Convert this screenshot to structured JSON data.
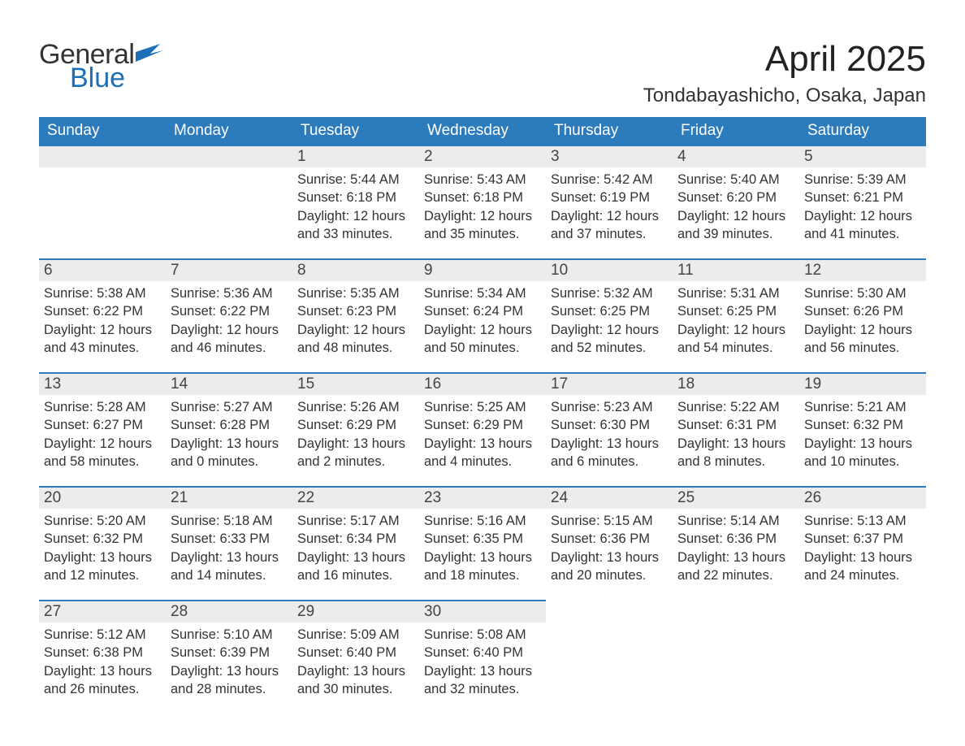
{
  "logo": {
    "text_general": "General",
    "text_blue": "Blue",
    "flag_color": "#1d6fb8"
  },
  "title": "April 2025",
  "location": "Tondabayashicho, Osaka, Japan",
  "colors": {
    "header_bg": "#2b7bbd",
    "header_text": "#ffffff",
    "daynum_bg": "#ececec",
    "daynum_border": "#2b7bbd",
    "body_text": "#333333",
    "logo_blue": "#1d6fb8"
  },
  "weekdays": [
    "Sunday",
    "Monday",
    "Tuesday",
    "Wednesday",
    "Thursday",
    "Friday",
    "Saturday"
  ],
  "weeks": [
    [
      null,
      null,
      {
        "day": "1",
        "sunrise": "Sunrise: 5:44 AM",
        "sunset": "Sunset: 6:18 PM",
        "daylight": "Daylight: 12 hours and 33 minutes."
      },
      {
        "day": "2",
        "sunrise": "Sunrise: 5:43 AM",
        "sunset": "Sunset: 6:18 PM",
        "daylight": "Daylight: 12 hours and 35 minutes."
      },
      {
        "day": "3",
        "sunrise": "Sunrise: 5:42 AM",
        "sunset": "Sunset: 6:19 PM",
        "daylight": "Daylight: 12 hours and 37 minutes."
      },
      {
        "day": "4",
        "sunrise": "Sunrise: 5:40 AM",
        "sunset": "Sunset: 6:20 PM",
        "daylight": "Daylight: 12 hours and 39 minutes."
      },
      {
        "day": "5",
        "sunrise": "Sunrise: 5:39 AM",
        "sunset": "Sunset: 6:21 PM",
        "daylight": "Daylight: 12 hours and 41 minutes."
      }
    ],
    [
      {
        "day": "6",
        "sunrise": "Sunrise: 5:38 AM",
        "sunset": "Sunset: 6:22 PM",
        "daylight": "Daylight: 12 hours and 43 minutes."
      },
      {
        "day": "7",
        "sunrise": "Sunrise: 5:36 AM",
        "sunset": "Sunset: 6:22 PM",
        "daylight": "Daylight: 12 hours and 46 minutes."
      },
      {
        "day": "8",
        "sunrise": "Sunrise: 5:35 AM",
        "sunset": "Sunset: 6:23 PM",
        "daylight": "Daylight: 12 hours and 48 minutes."
      },
      {
        "day": "9",
        "sunrise": "Sunrise: 5:34 AM",
        "sunset": "Sunset: 6:24 PM",
        "daylight": "Daylight: 12 hours and 50 minutes."
      },
      {
        "day": "10",
        "sunrise": "Sunrise: 5:32 AM",
        "sunset": "Sunset: 6:25 PM",
        "daylight": "Daylight: 12 hours and 52 minutes."
      },
      {
        "day": "11",
        "sunrise": "Sunrise: 5:31 AM",
        "sunset": "Sunset: 6:25 PM",
        "daylight": "Daylight: 12 hours and 54 minutes."
      },
      {
        "day": "12",
        "sunrise": "Sunrise: 5:30 AM",
        "sunset": "Sunset: 6:26 PM",
        "daylight": "Daylight: 12 hours and 56 minutes."
      }
    ],
    [
      {
        "day": "13",
        "sunrise": "Sunrise: 5:28 AM",
        "sunset": "Sunset: 6:27 PM",
        "daylight": "Daylight: 12 hours and 58 minutes."
      },
      {
        "day": "14",
        "sunrise": "Sunrise: 5:27 AM",
        "sunset": "Sunset: 6:28 PM",
        "daylight": "Daylight: 13 hours and 0 minutes."
      },
      {
        "day": "15",
        "sunrise": "Sunrise: 5:26 AM",
        "sunset": "Sunset: 6:29 PM",
        "daylight": "Daylight: 13 hours and 2 minutes."
      },
      {
        "day": "16",
        "sunrise": "Sunrise: 5:25 AM",
        "sunset": "Sunset: 6:29 PM",
        "daylight": "Daylight: 13 hours and 4 minutes."
      },
      {
        "day": "17",
        "sunrise": "Sunrise: 5:23 AM",
        "sunset": "Sunset: 6:30 PM",
        "daylight": "Daylight: 13 hours and 6 minutes."
      },
      {
        "day": "18",
        "sunrise": "Sunrise: 5:22 AM",
        "sunset": "Sunset: 6:31 PM",
        "daylight": "Daylight: 13 hours and 8 minutes."
      },
      {
        "day": "19",
        "sunrise": "Sunrise: 5:21 AM",
        "sunset": "Sunset: 6:32 PM",
        "daylight": "Daylight: 13 hours and 10 minutes."
      }
    ],
    [
      {
        "day": "20",
        "sunrise": "Sunrise: 5:20 AM",
        "sunset": "Sunset: 6:32 PM",
        "daylight": "Daylight: 13 hours and 12 minutes."
      },
      {
        "day": "21",
        "sunrise": "Sunrise: 5:18 AM",
        "sunset": "Sunset: 6:33 PM",
        "daylight": "Daylight: 13 hours and 14 minutes."
      },
      {
        "day": "22",
        "sunrise": "Sunrise: 5:17 AM",
        "sunset": "Sunset: 6:34 PM",
        "daylight": "Daylight: 13 hours and 16 minutes."
      },
      {
        "day": "23",
        "sunrise": "Sunrise: 5:16 AM",
        "sunset": "Sunset: 6:35 PM",
        "daylight": "Daylight: 13 hours and 18 minutes."
      },
      {
        "day": "24",
        "sunrise": "Sunrise: 5:15 AM",
        "sunset": "Sunset: 6:36 PM",
        "daylight": "Daylight: 13 hours and 20 minutes."
      },
      {
        "day": "25",
        "sunrise": "Sunrise: 5:14 AM",
        "sunset": "Sunset: 6:36 PM",
        "daylight": "Daylight: 13 hours and 22 minutes."
      },
      {
        "day": "26",
        "sunrise": "Sunrise: 5:13 AM",
        "sunset": "Sunset: 6:37 PM",
        "daylight": "Daylight: 13 hours and 24 minutes."
      }
    ],
    [
      {
        "day": "27",
        "sunrise": "Sunrise: 5:12 AM",
        "sunset": "Sunset: 6:38 PM",
        "daylight": "Daylight: 13 hours and 26 minutes."
      },
      {
        "day": "28",
        "sunrise": "Sunrise: 5:10 AM",
        "sunset": "Sunset: 6:39 PM",
        "daylight": "Daylight: 13 hours and 28 minutes."
      },
      {
        "day": "29",
        "sunrise": "Sunrise: 5:09 AM",
        "sunset": "Sunset: 6:40 PM",
        "daylight": "Daylight: 13 hours and 30 minutes."
      },
      {
        "day": "30",
        "sunrise": "Sunrise: 5:08 AM",
        "sunset": "Sunset: 6:40 PM",
        "daylight": "Daylight: 13 hours and 32 minutes."
      },
      null,
      null,
      null
    ]
  ]
}
